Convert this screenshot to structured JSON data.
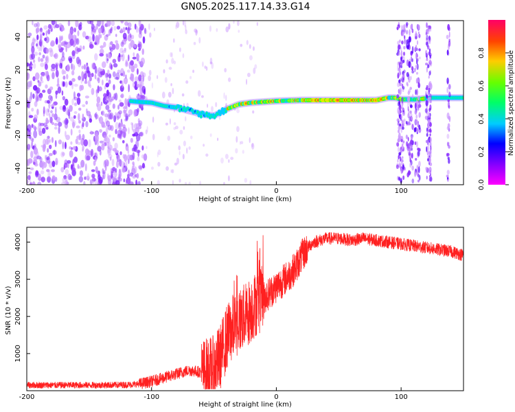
{
  "title": "GN05.2025.117.14.33.G14",
  "chart_data": [
    {
      "type": "heatmap",
      "title": "",
      "xlabel": "Height of straight line (km)",
      "ylabel": "Frequency (Hz)",
      "xlim": [
        -200,
        150
      ],
      "ylim": [
        -50,
        50
      ],
      "x_ticks": [
        "-200",
        "-100",
        "0",
        "100"
      ],
      "y_ticks": [
        "-40",
        "-20",
        "0",
        "20",
        "40"
      ],
      "colorbar": {
        "label": "Normalized spectral amplitude",
        "ticks": [
          "0.0",
          "0.2",
          "0.4",
          "0.6",
          "0.8"
        ],
        "range": [
          0,
          1
        ]
      },
      "colormap": [
        "#ff00ff",
        "#8800ff",
        "#0000ff",
        "#00ccff",
        "#00ff88",
        "#44ff00",
        "#ccff00",
        "#ffcc00",
        "#ff4400",
        "#ff0066"
      ],
      "ridge": {
        "x": [
          -117,
          -110,
          -100,
          -90,
          -80,
          -70,
          -60,
          -50,
          -45,
          -40,
          -30,
          -20,
          -10,
          0,
          20,
          40,
          60,
          80,
          90,
          95,
          100,
          105,
          110,
          113,
          125,
          150
        ],
        "y": [
          1,
          0.5,
          0,
          -2,
          -3,
          -5,
          -7,
          -8,
          -6,
          -4,
          -1,
          0,
          0.5,
          1,
          1.5,
          1.5,
          1.5,
          1.5,
          3,
          3,
          2,
          2,
          2,
          2,
          3,
          3
        ]
      }
    },
    {
      "type": "line",
      "title": "",
      "xlabel": "Height of straight line (km)",
      "ylabel": "SNR (10 * v/v)",
      "xlim": [
        -200,
        150
      ],
      "ylim": [
        0,
        4400
      ],
      "x_ticks": [
        "-200",
        "-100",
        "0",
        "100"
      ],
      "y_ticks": [
        "1000",
        "2000",
        "3000",
        "4000"
      ],
      "line_color": "#ff0000",
      "series": [
        {
          "x": [
            -200,
            -180,
            -160,
            -140,
            -120,
            -110,
            -100,
            -90,
            -80,
            -70,
            -60,
            -50,
            -45,
            -40,
            -35,
            -30,
            -25,
            -20,
            -15,
            -10,
            -5,
            0,
            5,
            10,
            15,
            20,
            25,
            30,
            40,
            50,
            60,
            70,
            80,
            90,
            100,
            110,
            120,
            130,
            140,
            150
          ],
          "values": [
            150,
            150,
            150,
            150,
            160,
            180,
            250,
            350,
            450,
            550,
            500,
            600,
            900,
            1400,
            1700,
            1900,
            2000,
            2200,
            2400,
            2500,
            2650,
            2800,
            2950,
            3100,
            3300,
            3600,
            3850,
            4000,
            4100,
            4100,
            4050,
            4100,
            4050,
            4000,
            3950,
            3900,
            3850,
            3800,
            3750,
            3650
          ]
        }
      ]
    }
  ]
}
